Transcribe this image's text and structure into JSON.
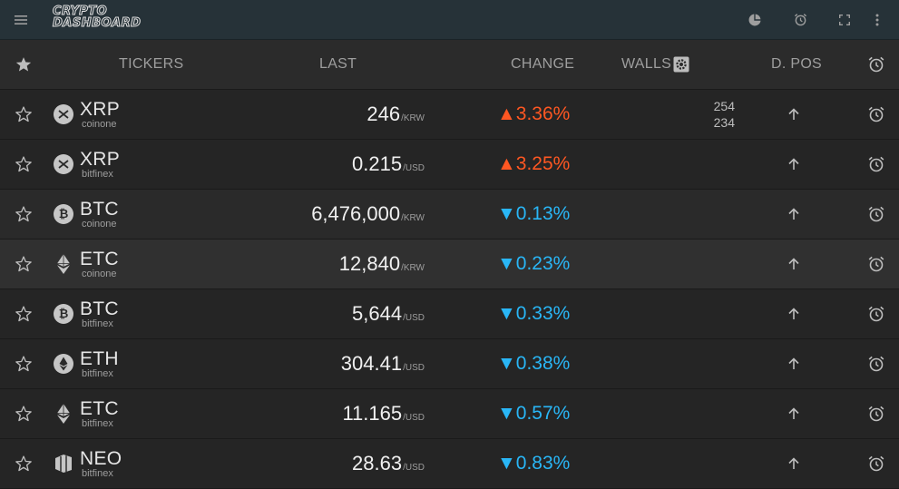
{
  "app": {
    "logo_line1": "CRYPTO",
    "logo_line2": "DASHBOARD",
    "toolbar_icons": [
      "menu-icon",
      "pie-chart-icon",
      "alarm-icon",
      "fullscreen-icon",
      "more-vert-icon"
    ]
  },
  "header": {
    "tickers": "TICKERS",
    "last": "LAST",
    "change": "CHANGE",
    "walls": "WALLS",
    "dpos": "D. POS"
  },
  "colors": {
    "up": "#ff5722",
    "down": "#29b6f6",
    "topbar": "#263238"
  },
  "rows": [
    {
      "symbol": "XRP",
      "exchange": "coinone",
      "icon": "xrp-icon",
      "price": "246",
      "unit": "/KRW",
      "direction": "up",
      "arrow": "▲",
      "change": "3.36%",
      "walls_top": "254",
      "walls_bottom": "234"
    },
    {
      "symbol": "XRP",
      "exchange": "bitfinex",
      "icon": "xrp-icon",
      "price": "0.215",
      "unit": "/USD",
      "direction": "up",
      "arrow": "▲",
      "change": "3.25%",
      "walls_top": "",
      "walls_bottom": ""
    },
    {
      "symbol": "BTC",
      "exchange": "coinone",
      "icon": "btc-icon",
      "price": "6,476,000",
      "unit": "/KRW",
      "direction": "down",
      "arrow": "▼",
      "change": "0.13%",
      "walls_top": "",
      "walls_bottom": ""
    },
    {
      "symbol": "ETC",
      "exchange": "coinone",
      "icon": "etc-icon",
      "price": "12,840",
      "unit": "/KRW",
      "direction": "down",
      "arrow": "▼",
      "change": "0.23%",
      "walls_top": "",
      "walls_bottom": ""
    },
    {
      "symbol": "BTC",
      "exchange": "bitfinex",
      "icon": "btc-icon",
      "price": "5,644",
      "unit": "/USD",
      "direction": "down",
      "arrow": "▼",
      "change": "0.33%",
      "walls_top": "",
      "walls_bottom": ""
    },
    {
      "symbol": "ETH",
      "exchange": "bitfinex",
      "icon": "eth-icon",
      "price": "304.41",
      "unit": "/USD",
      "direction": "down",
      "arrow": "▼",
      "change": "0.38%",
      "walls_top": "",
      "walls_bottom": ""
    },
    {
      "symbol": "ETC",
      "exchange": "bitfinex",
      "icon": "etc-icon",
      "price": "11.165",
      "unit": "/USD",
      "direction": "down",
      "arrow": "▼",
      "change": "0.57%",
      "walls_top": "",
      "walls_bottom": ""
    },
    {
      "symbol": "NEO",
      "exchange": "bitfinex",
      "icon": "neo-icon",
      "price": "28.63",
      "unit": "/USD",
      "direction": "down",
      "arrow": "▼",
      "change": "0.83%",
      "walls_top": "",
      "walls_bottom": ""
    }
  ]
}
